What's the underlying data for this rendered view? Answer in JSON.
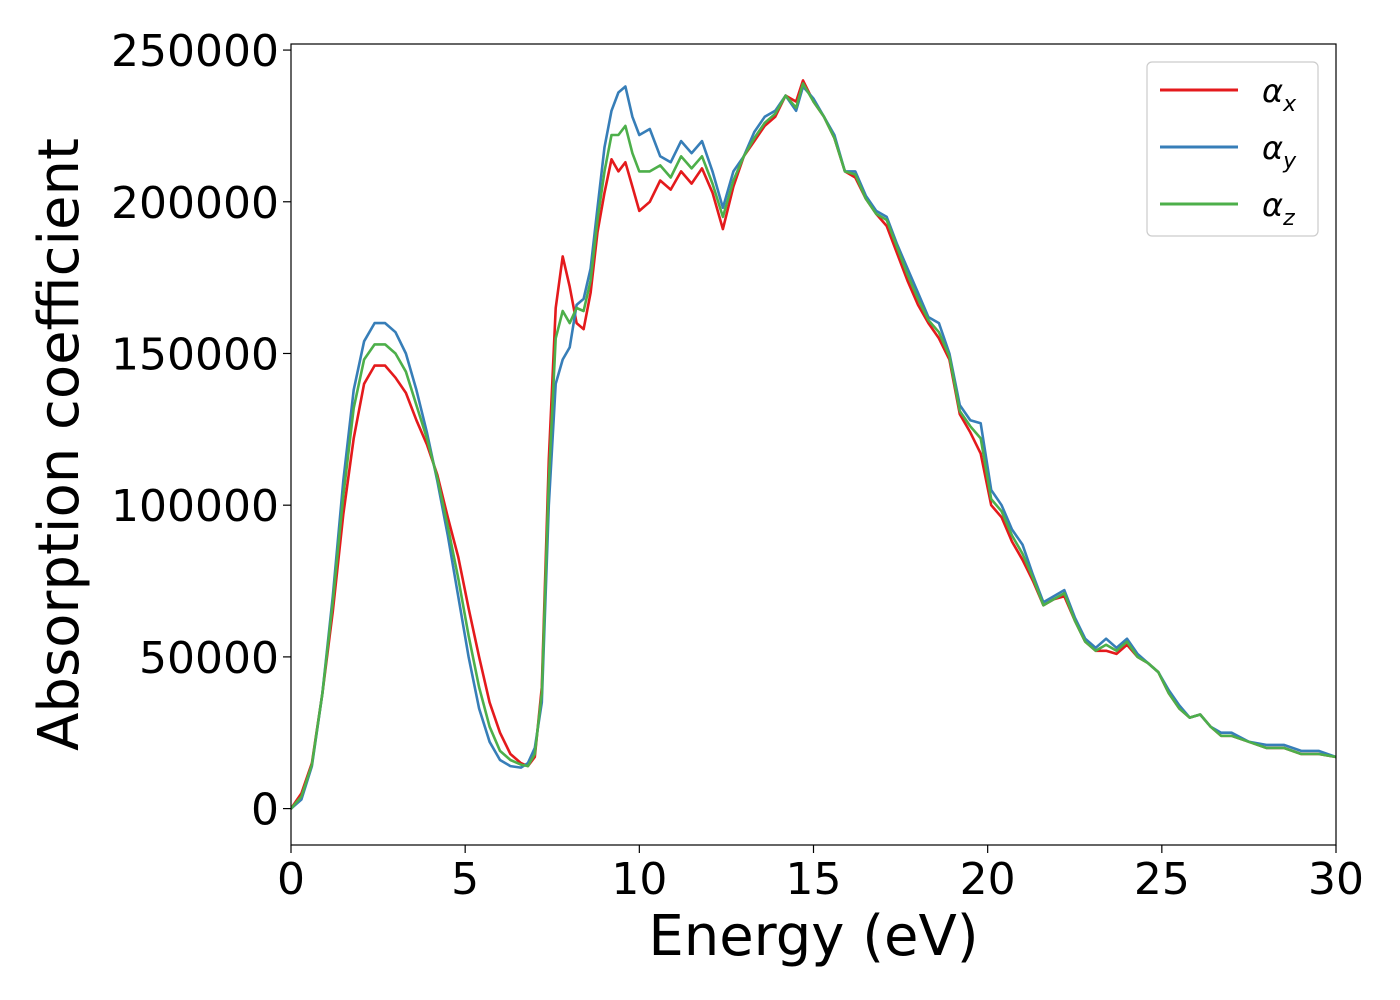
{
  "chart_data": {
    "type": "line",
    "title": "",
    "xlabel": "Energy (eV)",
    "ylabel": "Absorption coefficient",
    "xlim": [
      0,
      30
    ],
    "ylim": [
      -12000,
      252000
    ],
    "xticks": [
      0,
      5,
      10,
      15,
      20,
      25,
      30
    ],
    "yticks": [
      0,
      50000,
      100000,
      150000,
      200000,
      250000
    ],
    "grid": false,
    "legend_position": "top-right",
    "series": [
      {
        "name": "αx",
        "base": "α",
        "sub": "x",
        "color": "#e41a1c",
        "x": [
          0,
          0.3,
          0.6,
          0.9,
          1.2,
          1.5,
          1.8,
          2.1,
          2.4,
          2.7,
          3.0,
          3.3,
          3.6,
          3.9,
          4.2,
          4.5,
          4.8,
          5.1,
          5.4,
          5.7,
          6.0,
          6.3,
          6.6,
          6.8,
          7.0,
          7.2,
          7.4,
          7.6,
          7.8,
          8.0,
          8.2,
          8.4,
          8.6,
          8.8,
          9.0,
          9.2,
          9.4,
          9.6,
          9.8,
          10.0,
          10.3,
          10.6,
          10.9,
          11.2,
          11.5,
          11.8,
          12.1,
          12.4,
          12.7,
          13.0,
          13.3,
          13.6,
          13.9,
          14.2,
          14.5,
          14.7,
          15.0,
          15.3,
          15.6,
          15.9,
          16.2,
          16.5,
          16.8,
          17.1,
          17.4,
          17.7,
          18.0,
          18.3,
          18.6,
          18.9,
          19.2,
          19.5,
          19.8,
          20.1,
          20.4,
          20.7,
          21.0,
          21.3,
          21.6,
          21.9,
          22.2,
          22.5,
          22.8,
          23.1,
          23.4,
          23.7,
          24.0,
          24.3,
          24.6,
          24.9,
          25.2,
          25.5,
          25.8,
          26.1,
          26.4,
          26.7,
          27.0,
          27.5,
          28.0,
          28.5,
          29.0,
          29.5,
          30.0
        ],
        "y": [
          0,
          5000,
          15000,
          38000,
          65000,
          97000,
          122000,
          140000,
          146000,
          146000,
          142000,
          137000,
          128000,
          120000,
          110000,
          96000,
          83000,
          66000,
          50000,
          35000,
          25000,
          18000,
          15000,
          14000,
          17000,
          40000,
          115000,
          165000,
          182000,
          172000,
          160000,
          158000,
          170000,
          190000,
          203000,
          214000,
          210000,
          213000,
          205000,
          197000,
          200000,
          207000,
          204000,
          210000,
          206000,
          211000,
          203000,
          191000,
          205000,
          215000,
          220000,
          225000,
          228000,
          235000,
          233000,
          240000,
          233000,
          228000,
          221000,
          210000,
          208000,
          201000,
          196000,
          192000,
          183000,
          174000,
          166000,
          160000,
          155000,
          148000,
          130000,
          124000,
          117000,
          100000,
          96000,
          88000,
          82000,
          75000,
          67000,
          69000,
          70000,
          62000,
          55000,
          52000,
          52000,
          51000,
          54000,
          50000,
          48000,
          45000,
          38000,
          33000,
          30000,
          31000,
          27000,
          24000,
          24000,
          22000,
          20000,
          20000,
          18000,
          18000,
          17000
        ]
      },
      {
        "name": "αy",
        "base": "α",
        "sub": "y",
        "color": "#377eb8",
        "x": [
          0,
          0.3,
          0.6,
          0.9,
          1.2,
          1.5,
          1.8,
          2.1,
          2.4,
          2.7,
          3.0,
          3.3,
          3.6,
          3.9,
          4.2,
          4.5,
          4.8,
          5.1,
          5.4,
          5.7,
          6.0,
          6.3,
          6.6,
          6.8,
          7.0,
          7.2,
          7.4,
          7.6,
          7.8,
          8.0,
          8.2,
          8.4,
          8.6,
          8.8,
          9.0,
          9.2,
          9.4,
          9.6,
          9.8,
          10.0,
          10.3,
          10.6,
          10.9,
          11.2,
          11.5,
          11.8,
          12.1,
          12.4,
          12.7,
          13.0,
          13.3,
          13.6,
          13.9,
          14.2,
          14.5,
          14.7,
          15.0,
          15.3,
          15.6,
          15.9,
          16.2,
          16.5,
          16.8,
          17.1,
          17.4,
          17.7,
          18.0,
          18.3,
          18.6,
          18.9,
          19.2,
          19.5,
          19.8,
          20.1,
          20.4,
          20.7,
          21.0,
          21.3,
          21.6,
          21.9,
          22.2,
          22.5,
          22.8,
          23.1,
          23.4,
          23.7,
          24.0,
          24.3,
          24.6,
          24.9,
          25.2,
          25.5,
          25.8,
          26.1,
          26.4,
          26.7,
          27.0,
          27.5,
          28.0,
          28.5,
          29.0,
          29.5,
          30.0
        ],
        "y": [
          0,
          3000,
          14000,
          38000,
          70000,
          108000,
          138000,
          154000,
          160000,
          160000,
          157000,
          150000,
          138000,
          124000,
          108000,
          90000,
          70000,
          50000,
          33000,
          22000,
          16000,
          14000,
          13500,
          15000,
          20000,
          35000,
          100000,
          140000,
          148000,
          152000,
          166000,
          168000,
          178000,
          198000,
          218000,
          230000,
          236000,
          238000,
          228000,
          222000,
          224000,
          215000,
          213000,
          220000,
          216000,
          220000,
          210000,
          198000,
          210000,
          215000,
          223000,
          228000,
          230000,
          235000,
          230000,
          238000,
          234000,
          228000,
          222000,
          210000,
          210000,
          202000,
          197000,
          195000,
          186000,
          178000,
          170000,
          162000,
          160000,
          150000,
          133000,
          128000,
          127000,
          105000,
          100000,
          92000,
          87000,
          77000,
          68000,
          70000,
          72000,
          63000,
          56000,
          53000,
          56000,
          53000,
          56000,
          51000,
          48000,
          45000,
          39000,
          34000,
          30000,
          31000,
          27000,
          25000,
          25000,
          22000,
          21000,
          21000,
          19000,
          19000,
          17000
        ]
      },
      {
        "name": "αz",
        "base": "α",
        "sub": "z",
        "color": "#4daf4a",
        "x": [
          0,
          0.3,
          0.6,
          0.9,
          1.2,
          1.5,
          1.8,
          2.1,
          2.4,
          2.7,
          3.0,
          3.3,
          3.6,
          3.9,
          4.2,
          4.5,
          4.8,
          5.1,
          5.4,
          5.7,
          6.0,
          6.3,
          6.6,
          6.8,
          7.0,
          7.2,
          7.4,
          7.6,
          7.8,
          8.0,
          8.2,
          8.4,
          8.6,
          8.8,
          9.0,
          9.2,
          9.4,
          9.6,
          9.8,
          10.0,
          10.3,
          10.6,
          10.9,
          11.2,
          11.5,
          11.8,
          12.1,
          12.4,
          12.7,
          13.0,
          13.3,
          13.6,
          13.9,
          14.2,
          14.5,
          14.7,
          15.0,
          15.3,
          15.6,
          15.9,
          16.2,
          16.5,
          16.8,
          17.1,
          17.4,
          17.7,
          18.0,
          18.3,
          18.6,
          18.9,
          19.2,
          19.5,
          19.8,
          20.1,
          20.4,
          20.7,
          21.0,
          21.3,
          21.6,
          21.9,
          22.2,
          22.5,
          22.8,
          23.1,
          23.4,
          23.7,
          24.0,
          24.3,
          24.6,
          24.9,
          25.2,
          25.5,
          25.8,
          26.1,
          26.4,
          26.7,
          27.0,
          27.5,
          28.0,
          28.5,
          29.0,
          29.5,
          30.0
        ],
        "y": [
          0,
          4000,
          14500,
          38000,
          68000,
          103000,
          132000,
          148000,
          153000,
          153000,
          150000,
          144000,
          133000,
          122000,
          109000,
          93000,
          76000,
          57000,
          40000,
          27000,
          19000,
          16000,
          14500,
          14000,
          18000,
          38000,
          108000,
          155000,
          164000,
          160000,
          165000,
          164000,
          174000,
          194000,
          210000,
          222000,
          222000,
          225000,
          216000,
          210000,
          210000,
          212000,
          208000,
          215000,
          211000,
          215000,
          206000,
          195000,
          207000,
          215000,
          221000,
          226000,
          229000,
          235000,
          231000,
          239000,
          233000,
          228000,
          221000,
          210000,
          209000,
          201000,
          196000,
          194000,
          185000,
          176000,
          168000,
          161000,
          157000,
          149000,
          131000,
          126000,
          122000,
          102000,
          98000,
          90000,
          84000,
          76000,
          67000,
          69000,
          71000,
          62000,
          55000,
          52000,
          54000,
          52000,
          55000,
          50000,
          48000,
          45000,
          38000,
          33000,
          30000,
          31000,
          27000,
          24000,
          24000,
          22000,
          20000,
          20000,
          18000,
          18000,
          17000
        ]
      }
    ]
  }
}
